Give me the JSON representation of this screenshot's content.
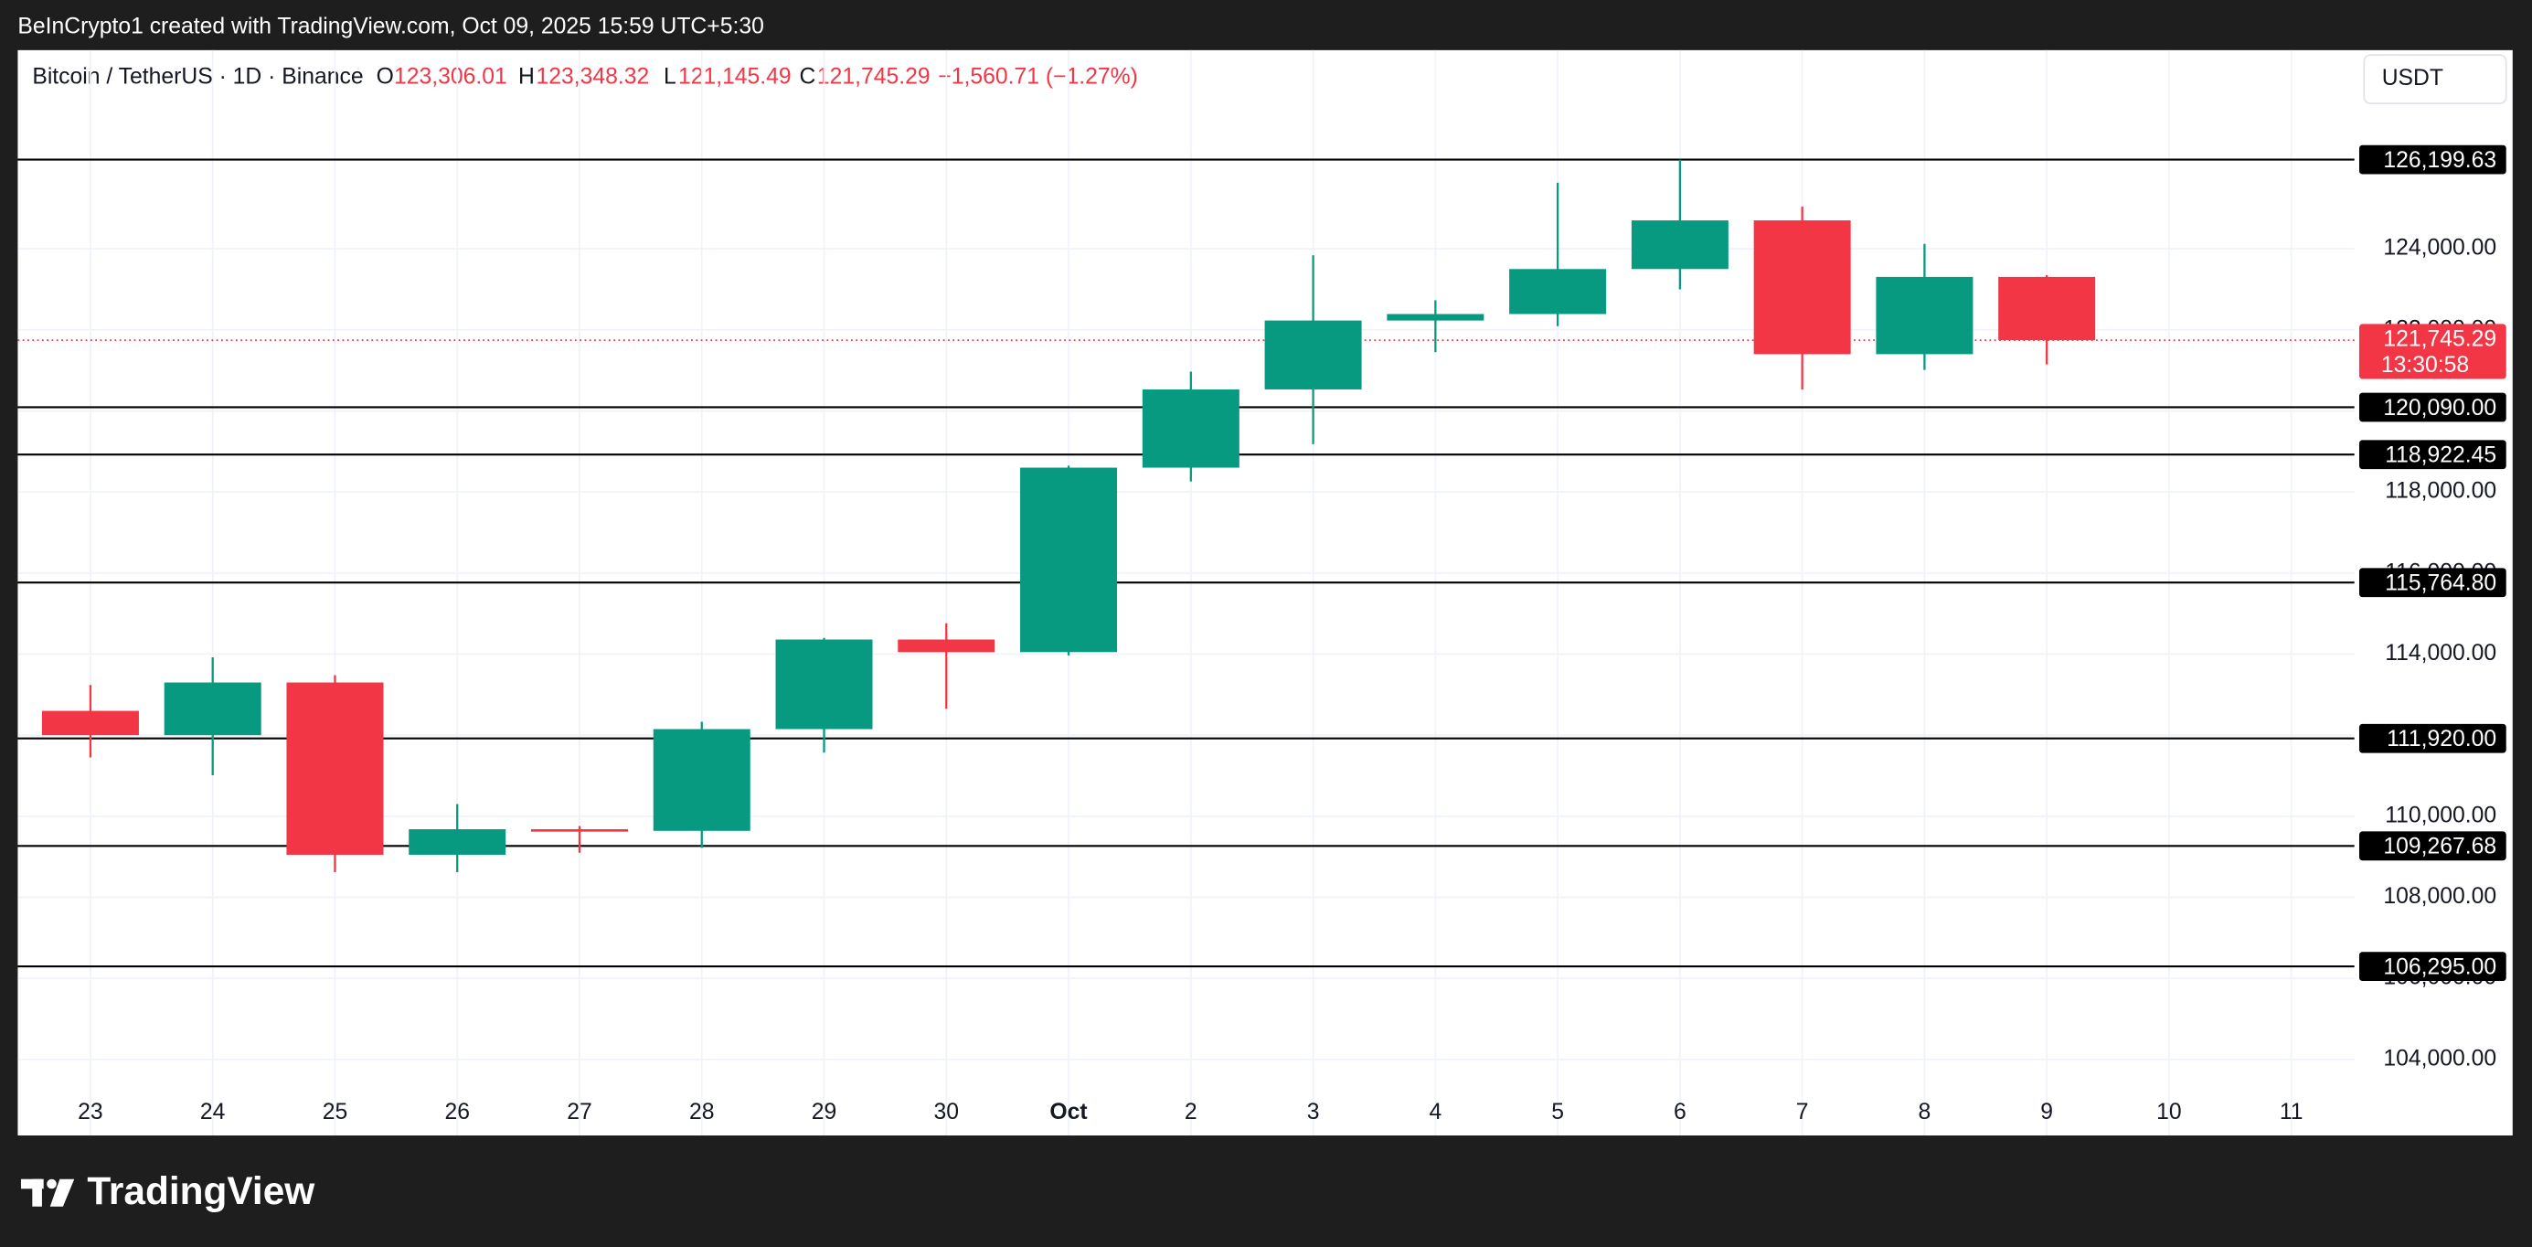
{
  "header": {
    "attribution": "BeInCrypto1 created with TradingView.com, Oct 09, 2025 15:59 UTC+5:30",
    "symbol": "Bitcoin / TetherUS · 1D · Binance",
    "open_key": "O",
    "open": "123,306.01",
    "high_key": "H",
    "high": "123,348.32",
    "low_key": "L",
    "low": "121,145.49",
    "close_key": "C",
    "close": "121,745.29",
    "change": "−1,560.71 (−1.27%)",
    "currency": "USDT",
    "logo": "TradingView"
  },
  "chart_data": {
    "type": "candlestick",
    "categories": [
      "23",
      "24",
      "25",
      "26",
      "27",
      "28",
      "29",
      "30",
      "Oct",
      "2",
      "3",
      "4",
      "5",
      "6",
      "7",
      "8",
      "9",
      "10",
      "11"
    ],
    "series": [
      {
        "up_color": "#089981",
        "down_color": "#f23645",
        "open": [
          112600,
          112000,
          113300,
          109050,
          109680,
          109640,
          112150,
          114360,
          114050,
          118600,
          120530,
          122230,
          122390,
          123500,
          124700,
          121400,
          123306.01,
          null,
          null
        ],
        "high": [
          113240,
          113920,
          113480,
          110300,
          109760,
          112330,
          114400,
          114760,
          118650,
          120970,
          123840,
          122730,
          125630,
          126199.63,
          125040,
          124120,
          123348.32,
          null,
          null
        ],
        "low": [
          111450,
          111010,
          108620,
          108620,
          109100,
          109220,
          111570,
          112650,
          113970,
          118260,
          119180,
          121450,
          122090,
          123000,
          120530,
          121010,
          121145.49,
          null,
          null
        ],
        "close": [
          112000,
          113300,
          109050,
          109680,
          109640,
          112150,
          114360,
          114050,
          118600,
          120530,
          122230,
          122390,
          123500,
          124700,
          121400,
          123306.01,
          121745.29,
          null,
          null
        ]
      }
    ],
    "ylim": [
      103360,
      128900
    ],
    "yticks": [
      {
        "value": 104000,
        "label": "104,000.00"
      },
      {
        "value": 106000,
        "label": "106,000.00"
      },
      {
        "value": 108000,
        "label": "108,000.00"
      },
      {
        "value": 110000,
        "label": "110,000.00"
      },
      {
        "value": 112000,
        "label": "112,000.00"
      },
      {
        "value": 114000,
        "label": "114,000.00"
      },
      {
        "value": 116000,
        "label": "116,000.00"
      },
      {
        "value": 118000,
        "label": "118,000.00"
      },
      {
        "value": 120000,
        "label": "120,000.00"
      },
      {
        "value": 122000,
        "label": "122,000.00"
      },
      {
        "value": 124000,
        "label": "124,000.00"
      }
    ],
    "grid": true,
    "levels": {
      "values": [
        126199.63,
        120090,
        118922.45,
        115764.8,
        111920,
        109267.68,
        106295
      ],
      "value_labels": [
        "126,199.63",
        "120,090.00",
        "118,922.45",
        "115,764.80",
        "111,920.00",
        "109,267.68",
        "106,295.00"
      ],
      "color": "#000000"
    },
    "last_price": {
      "value": 121745.29,
      "label": "121,745.29",
      "countdown": "13:30:58",
      "color": "#f23645"
    }
  }
}
